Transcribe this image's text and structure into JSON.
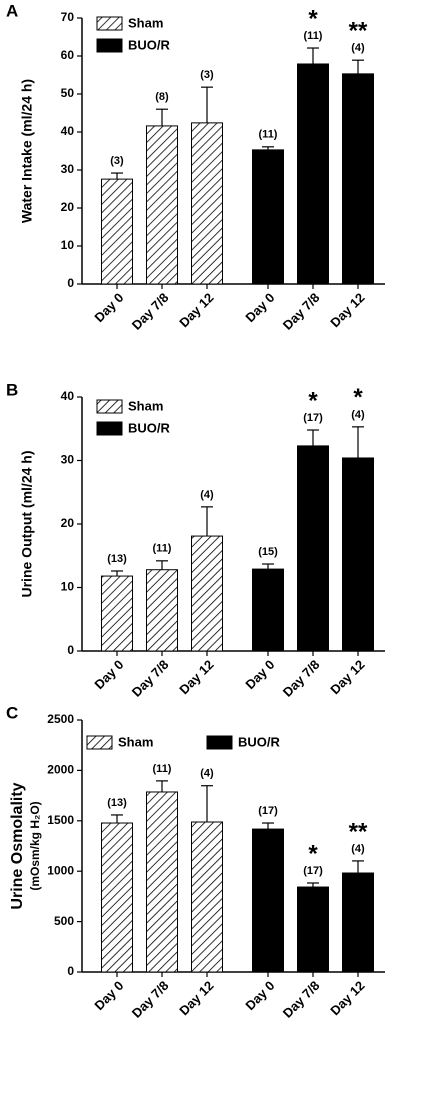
{
  "chart_data": [
    {
      "type": "bar",
      "panel_label": "A",
      "ylabel": "Water Intake (ml/24 h)",
      "categories": [
        "Day 0",
        "Day 7/8",
        "Day 12"
      ],
      "ylim": [
        0,
        70
      ],
      "yticks": [
        0,
        10,
        20,
        30,
        40,
        50,
        60,
        70
      ],
      "legend": "upper left",
      "legend_layout": "vertical",
      "series": [
        {
          "name": "Sham",
          "color": "#ffffff",
          "hatch": true,
          "values": [
            27.6,
            41.6,
            42.4
          ],
          "errors": [
            1.6,
            4.4,
            9.4
          ],
          "n_labels": [
            "(3)",
            "(8)",
            "(3)"
          ],
          "annotations": [
            null,
            null,
            null
          ]
        },
        {
          "name": "BUO/R",
          "color": "#000000",
          "hatch": false,
          "values": [
            35.3,
            57.9,
            55.3
          ],
          "errors": [
            0.8,
            4.2,
            3.6
          ],
          "n_labels": [
            "(11)",
            "(11)",
            "(4)"
          ],
          "annotations": [
            null,
            "*",
            "**"
          ]
        }
      ]
    },
    {
      "type": "bar",
      "panel_label": "B",
      "ylabel": "Urine Output (ml/24 h)",
      "categories": [
        "Day 0",
        "Day 7/8",
        "Day 12"
      ],
      "ylim": [
        0,
        40
      ],
      "yticks": [
        0,
        10,
        20,
        30,
        40
      ],
      "legend": "upper left",
      "legend_layout": "vertical",
      "series": [
        {
          "name": "Sham",
          "color": "#ffffff",
          "hatch": true,
          "values": [
            11.8,
            12.8,
            18.1
          ],
          "errors": [
            0.8,
            1.4,
            4.6
          ],
          "n_labels": [
            "(13)",
            "(11)",
            "(4)"
          ],
          "annotations": [
            null,
            null,
            null
          ]
        },
        {
          "name": "BUO/R",
          "color": "#000000",
          "hatch": false,
          "values": [
            12.9,
            32.3,
            30.4
          ],
          "errors": [
            0.8,
            2.5,
            4.9
          ],
          "n_labels": [
            "(15)",
            "(17)",
            "(4)"
          ],
          "annotations": [
            null,
            "*",
            "*"
          ]
        }
      ]
    },
    {
      "type": "bar",
      "panel_label": "C",
      "ylabel": "Urine Osmolality",
      "ylabel_sub": "(mOsm/kg H₂O)",
      "categories": [
        "Day 0",
        "Day 7/8",
        "Day 12"
      ],
      "ylim": [
        0,
        2500
      ],
      "yticks": [
        0,
        500,
        1000,
        1500,
        2000,
        2500
      ],
      "legend": "upper left",
      "legend_layout": "horizontal",
      "series": [
        {
          "name": "Sham",
          "color": "#ffffff",
          "hatch": true,
          "values": [
            1478,
            1786,
            1488
          ],
          "errors": [
            80,
            110,
            360
          ],
          "n_labels": [
            "(13)",
            "(11)",
            "(4)"
          ],
          "annotations": [
            null,
            null,
            null
          ]
        },
        {
          "name": "BUO/R",
          "color": "#000000",
          "hatch": false,
          "values": [
            1418,
            843,
            982
          ],
          "errors": [
            60,
            40,
            120
          ],
          "n_labels": [
            "(17)",
            "(17)",
            "(4)"
          ],
          "annotations": [
            null,
            "*",
            "**"
          ]
        }
      ]
    }
  ]
}
